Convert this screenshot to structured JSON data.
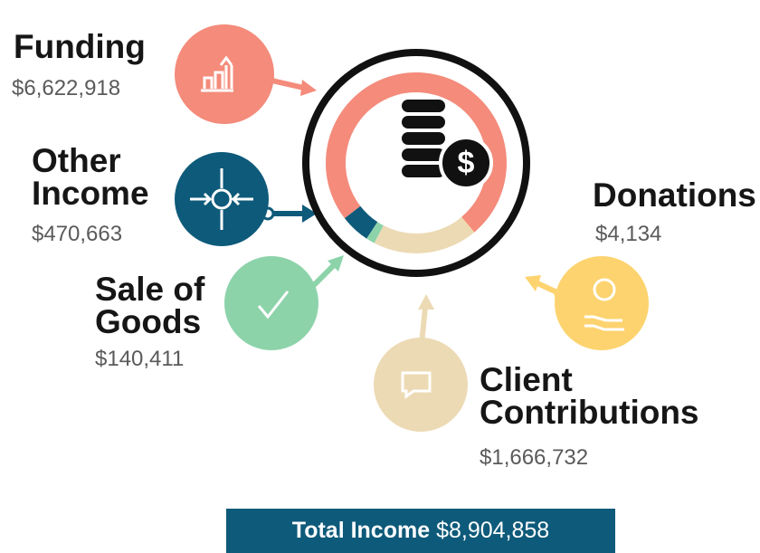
{
  "chart_data": {
    "type": "donut",
    "categories": [
      "Funding",
      "Other Income",
      "Sale of Goods",
      "Client Contributions",
      "Donations"
    ],
    "values": [
      6622918,
      470663,
      140411,
      1666732,
      4134
    ],
    "value_labels": [
      "$6,622,918",
      "$470,663",
      "$140,411",
      "$1,666,732",
      "$4,134"
    ],
    "colors": [
      "#f48b7b",
      "#0e5a7a",
      "#8dd3aa",
      "#ecdab4",
      "#fdd36f"
    ],
    "total": {
      "label": "Total Income",
      "value": "$8,904,858"
    }
  }
}
